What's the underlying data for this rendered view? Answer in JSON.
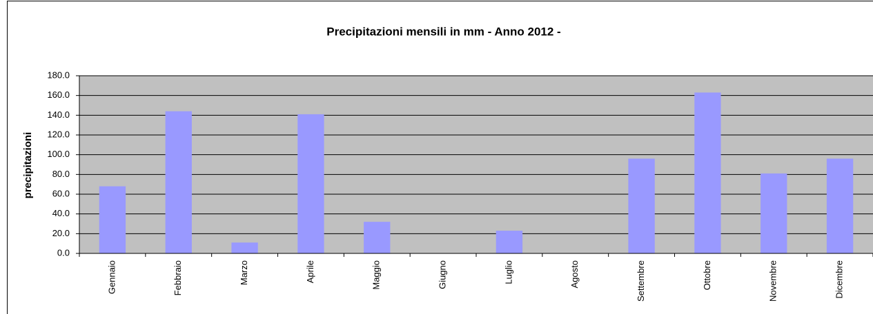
{
  "chart_data": {
    "type": "bar",
    "title": "Precipitazioni mensili in mm - Anno 2012 -",
    "y_label": "precipitazioni",
    "categories": [
      "Gennaio",
      "Febbraio",
      "Marzo",
      "Aprile",
      "Maggio",
      "Giugno",
      "Luglio",
      "Agosto",
      "Settembre",
      "Ottobre",
      "Novembre",
      "Dicembre"
    ],
    "values": [
      68,
      144,
      11,
      141,
      32,
      0,
      23,
      0,
      96,
      163,
      81,
      96
    ],
    "color": "#9999ff",
    "ylim": [
      0,
      180
    ],
    "yticks": [
      {
        "value": 0,
        "label": "0.0"
      },
      {
        "value": 20,
        "label": "20.0"
      },
      {
        "value": 40,
        "label": "40.0"
      },
      {
        "value": 60,
        "label": "60.0"
      },
      {
        "value": 80,
        "label": "80.0"
      },
      {
        "value": 100,
        "label": "100.0"
      },
      {
        "value": 120,
        "label": "120.0"
      },
      {
        "value": 140,
        "label": "140.0"
      },
      {
        "value": 160,
        "label": "160.0"
      },
      {
        "value": 180,
        "label": "180.0"
      }
    ],
    "grid": true
  }
}
